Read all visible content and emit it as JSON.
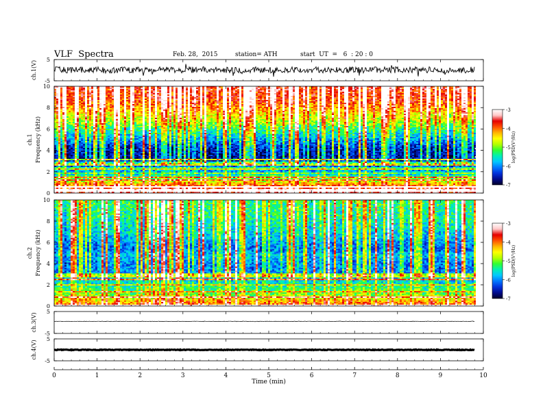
{
  "header": {
    "title": "VLF  Spectra",
    "date": "Feb. 28,  2015",
    "station": "station= ATH",
    "start_ut": "start  UT  =   6  : 20 : 0"
  },
  "chart_data": [
    {
      "type": "line",
      "name": "ch.1 waveform",
      "ylabel": "ch.1(V)",
      "ylim": [
        -5,
        5
      ],
      "yticks": [
        "5",
        "-5"
      ],
      "xlim": [
        0,
        10
      ],
      "x_data_end": 9.8,
      "baseline": 0.1,
      "noise_amplitude": 1.5
    },
    {
      "type": "heatmap",
      "name": "ch.1 spectrogram",
      "ylabel": [
        "ch.1",
        "Frequency  (kHz)"
      ],
      "ylim": [
        0,
        10
      ],
      "yticks": [
        "0",
        "2",
        "4",
        "6",
        "8",
        "10"
      ],
      "xlim": [
        0,
        10
      ],
      "x_data_end": 9.8,
      "colorbar": {
        "label": "log(PSD(V²/Hz)",
        "range": [
          -7,
          -3
        ],
        "ticks": [
          "-3",
          "-4",
          "-5",
          "-6",
          "-7"
        ]
      },
      "profile_khz": [
        [
          0,
          -3.6
        ],
        [
          0.5,
          -3.8
        ],
        [
          0.8,
          -4.3
        ],
        [
          1.2,
          -5.0
        ],
        [
          1.8,
          -5.8
        ],
        [
          2.5,
          -6.3
        ],
        [
          3.2,
          -6.8
        ],
        [
          4.2,
          -6.6
        ],
        [
          5.0,
          -6.1
        ],
        [
          5.8,
          -5.6
        ],
        [
          6.6,
          -5.0
        ],
        [
          7.6,
          -4.5
        ],
        [
          8.6,
          -4.0
        ],
        [
          10,
          -3.8
        ]
      ]
    },
    {
      "type": "heatmap",
      "name": "ch.2 spectrogram",
      "ylabel": [
        "ch.2",
        "Frequency  (kHz)"
      ],
      "ylim": [
        0,
        10
      ],
      "yticks": [
        "0",
        "2",
        "4",
        "6",
        "8",
        "10"
      ],
      "xlim": [
        0,
        10
      ],
      "x_data_end": 9.8,
      "colorbar": {
        "label": "log(PSD(V²/Hz)",
        "range": [
          -7,
          -3
        ],
        "ticks": [
          "-3",
          "-4",
          "-5",
          "-6",
          "-7"
        ]
      },
      "profile_khz": [
        [
          0,
          -4.0
        ],
        [
          0.6,
          -4.6
        ],
        [
          1.2,
          -5.2
        ],
        [
          2.0,
          -5.6
        ],
        [
          3.0,
          -6.1
        ],
        [
          4.0,
          -6.2
        ],
        [
          4.8,
          -5.9
        ],
        [
          5.4,
          -6.3
        ],
        [
          6.5,
          -5.9
        ],
        [
          8.0,
          -5.6
        ],
        [
          10,
          -5.4
        ]
      ]
    },
    {
      "type": "line",
      "name": "ch.3 waveform",
      "ylabel": "ch.3(V)",
      "ylim": [
        -5,
        5
      ],
      "yticks": [
        "5",
        "-5"
      ],
      "xlim": [
        0,
        10
      ],
      "x_data_end": 9.8,
      "baseline": 0.5,
      "noise_amplitude": 0.12
    },
    {
      "type": "line",
      "name": "ch.4 waveform",
      "ylabel": "ch.4(V)",
      "ylim": [
        -5,
        5
      ],
      "yticks": [
        "5",
        "-5"
      ],
      "xlim": [
        0,
        10
      ],
      "x_data_end": 9.8,
      "baseline": 0.0,
      "noise_amplitude": 0.15
    }
  ],
  "x_axis": {
    "label": "Time  (min)",
    "ticks": [
      "0",
      "1",
      "2",
      "3",
      "4",
      "5",
      "6",
      "7",
      "8",
      "9",
      "10"
    ]
  },
  "colors": {
    "colormap": [
      "#000028",
      "#000a8c",
      "#0032dc",
      "#0078ff",
      "#00c8ff",
      "#00f0b4",
      "#32ff32",
      "#b4ff00",
      "#ffff00",
      "#ffb400",
      "#ff5000",
      "#e60000",
      "#ffc8c8",
      "#ffffff"
    ],
    "trace": "#000000"
  }
}
